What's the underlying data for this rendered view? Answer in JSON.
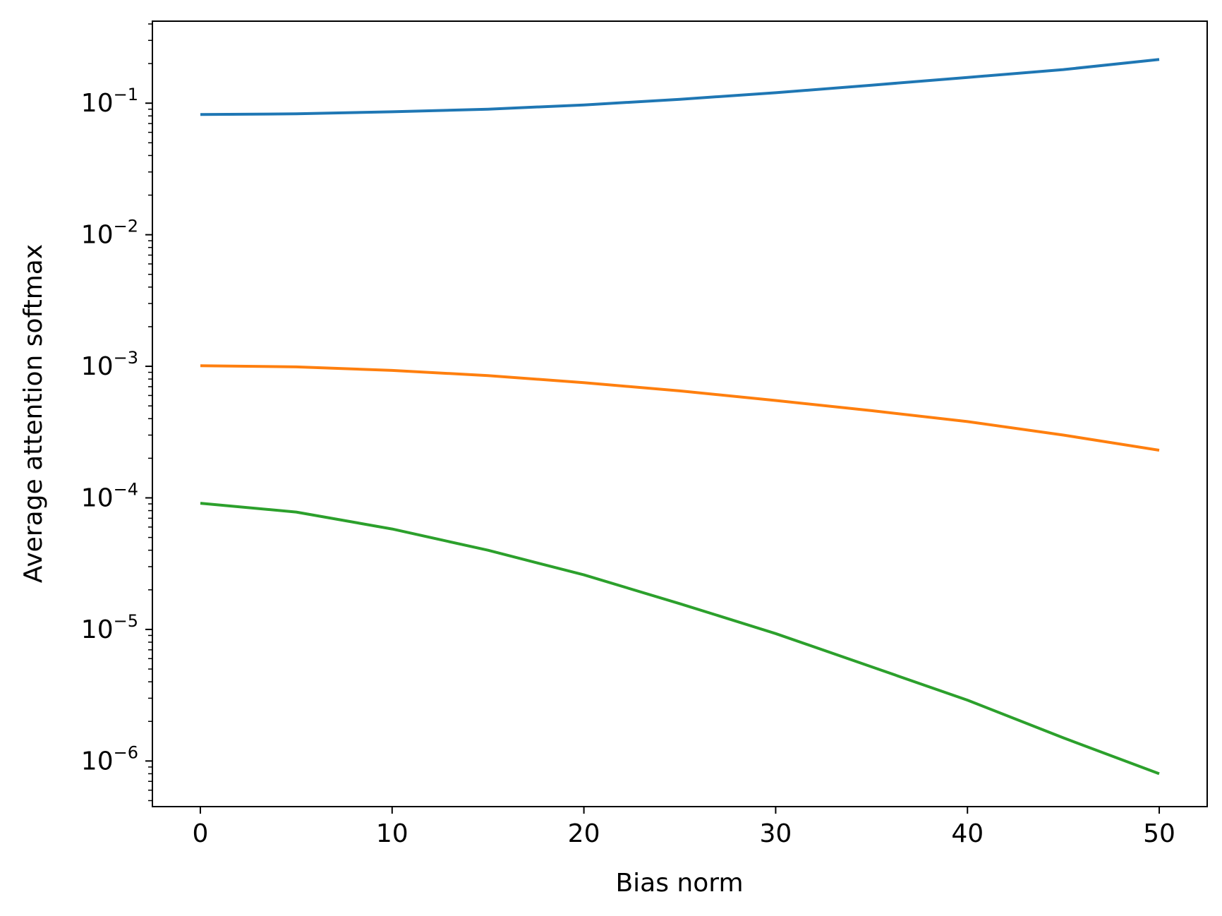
{
  "chart_data": {
    "type": "line",
    "title": "",
    "xlabel": "Bias norm",
    "ylabel": "Average attention softmax",
    "xscale": "linear",
    "yscale": "log",
    "xlim": [
      -2.5,
      52.5
    ],
    "ylim": [
      4.5e-07,
      0.42
    ],
    "grid": false,
    "x_ticks": [
      0,
      10,
      20,
      30,
      40,
      50
    ],
    "x_tick_labels": [
      "0",
      "10",
      "20",
      "30",
      "40",
      "50"
    ],
    "y_ticks": [
      1e-06,
      1e-05,
      0.0001,
      0.001,
      0.01,
      0.1
    ],
    "y_tick_labels": [
      {
        "base": "10",
        "exp": "−6"
      },
      {
        "base": "10",
        "exp": "−5"
      },
      {
        "base": "10",
        "exp": "−4"
      },
      {
        "base": "10",
        "exp": "−3"
      },
      {
        "base": "10",
        "exp": "−2"
      },
      {
        "base": "10",
        "exp": "−1"
      }
    ],
    "x": [
      0,
      5,
      10,
      15,
      20,
      25,
      30,
      35,
      40,
      45,
      50
    ],
    "series": [
      {
        "color": "#1f77b4",
        "values": [
          0.082,
          0.083,
          0.086,
          0.09,
          0.097,
          0.107,
          0.12,
          0.137,
          0.157,
          0.18,
          0.215
        ]
      },
      {
        "color": "#ff7f0e",
        "values": [
          0.00101,
          0.00099,
          0.00093,
          0.00085,
          0.00075,
          0.00065,
          0.00055,
          0.00046,
          0.00038,
          0.0003,
          0.00023
        ]
      },
      {
        "color": "#2ca02c",
        "values": [
          9.1e-05,
          7.8e-05,
          5.8e-05,
          4e-05,
          2.6e-05,
          1.57e-05,
          9.3e-06,
          5.2e-06,
          2.9e-06,
          1.5e-06,
          8e-07
        ]
      }
    ]
  }
}
